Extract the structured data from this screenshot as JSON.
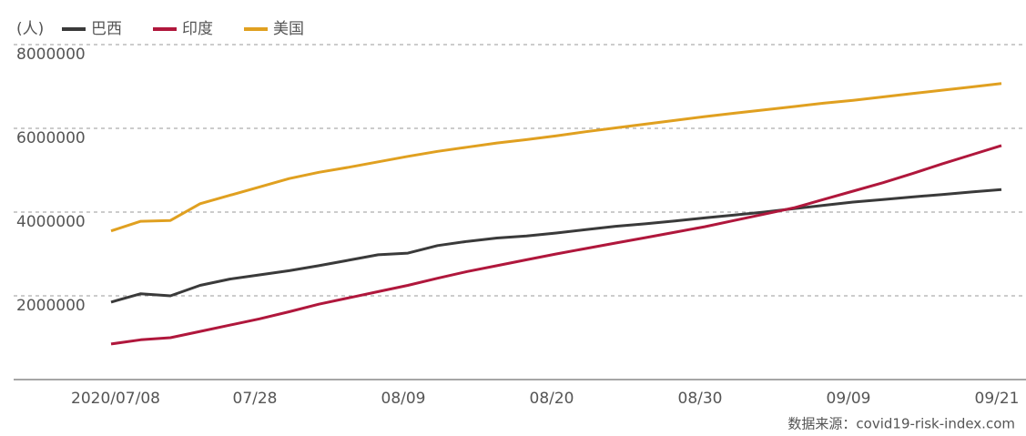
{
  "chart_data": {
    "type": "line",
    "unit_label": "(人)",
    "source": "数据来源：covid19-risk-index.com",
    "categories": [
      "2020/07/08",
      null,
      null,
      null,
      null,
      "07/28",
      null,
      null,
      null,
      null,
      "08/09",
      null,
      null,
      null,
      null,
      "08/20",
      null,
      null,
      null,
      null,
      "08/30",
      null,
      null,
      null,
      null,
      "09/09",
      null,
      null,
      null,
      null,
      "09/21"
    ],
    "series": [
      {
        "name": "巴西",
        "color": "#3a3a3a",
        "values": [
          1850000,
          2050000,
          2000000,
          2250000,
          2400000,
          2500000,
          2600000,
          2720000,
          2850000,
          2980000,
          3020000,
          3200000,
          3300000,
          3380000,
          3430000,
          3500000,
          3580000,
          3660000,
          3720000,
          3790000,
          3860000,
          3930000,
          4000000,
          4080000,
          4160000,
          4240000,
          4300000,
          4360000,
          4420000,
          4480000,
          4540000
        ]
      },
      {
        "name": "印度",
        "color": "#b0173c",
        "values": [
          850000,
          950000,
          1000000,
          1150000,
          1300000,
          1450000,
          1620000,
          1800000,
          1950000,
          2100000,
          2250000,
          2420000,
          2580000,
          2720000,
          2860000,
          3000000,
          3130000,
          3260000,
          3390000,
          3520000,
          3650000,
          3800000,
          3950000,
          4100000,
          4300000,
          4500000,
          4700000,
          4920000,
          5150000,
          5370000,
          5590000
        ]
      },
      {
        "name": "美国",
        "color": "#e0a020",
        "values": [
          3550000,
          3780000,
          3800000,
          4200000,
          4400000,
          4600000,
          4800000,
          4950000,
          5070000,
          5200000,
          5330000,
          5450000,
          5550000,
          5650000,
          5730000,
          5820000,
          5920000,
          6010000,
          6100000,
          6190000,
          6280000,
          6360000,
          6440000,
          6520000,
          6600000,
          6670000,
          6750000,
          6830000,
          6910000,
          6990000,
          7070000
        ]
      }
    ],
    "ylim": [
      0,
      8000000
    ],
    "yticks": [
      2000000,
      4000000,
      6000000,
      8000000
    ],
    "grid": true
  }
}
